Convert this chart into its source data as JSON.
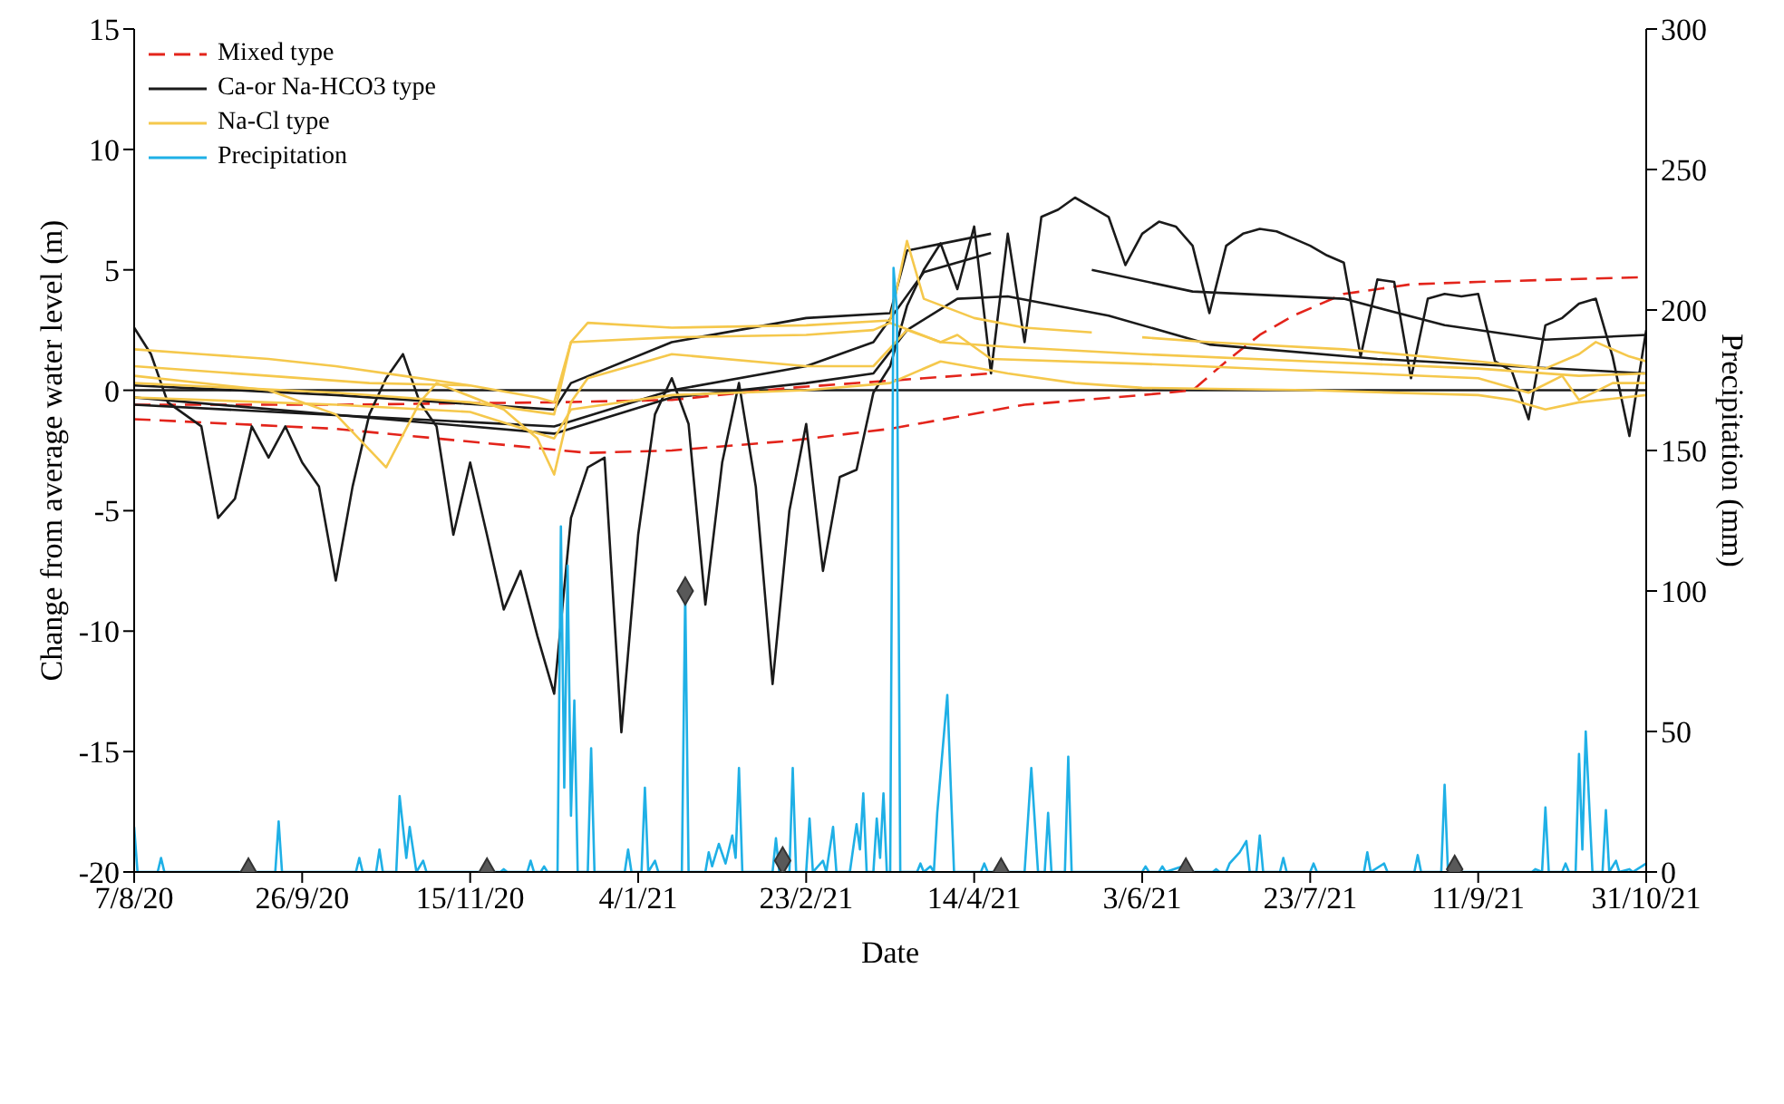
{
  "chart_data": {
    "type": "line",
    "xlabel": "Date",
    "ylabel": "Change from average water level (m)",
    "y2label": "Precipitation (mm)",
    "xlim": [
      "2020-08-07",
      "2021-10-31"
    ],
    "xticks": [
      {
        "value": "2020-08-07",
        "label": "7/8/20"
      },
      {
        "value": "2020-09-26",
        "label": "26/9/20"
      },
      {
        "value": "2020-11-15",
        "label": "15/11/20"
      },
      {
        "value": "2021-01-04",
        "label": "4/1/21"
      },
      {
        "value": "2021-02-23",
        "label": "23/2/21"
      },
      {
        "value": "2021-04-14",
        "label": "14/4/21"
      },
      {
        "value": "2021-06-03",
        "label": "3/6/21"
      },
      {
        "value": "2021-07-23",
        "label": "23/7/21"
      },
      {
        "value": "2021-09-11",
        "label": "11/9/21"
      },
      {
        "value": "2021-10-31",
        "label": "31/10/21"
      }
    ],
    "ylim": [
      -20,
      15
    ],
    "yticks": [
      -20,
      -15,
      -10,
      -5,
      0,
      5,
      10,
      15
    ],
    "y2lim": [
      0,
      300
    ],
    "y2ticks": [
      0,
      50,
      100,
      150,
      200,
      250,
      300
    ],
    "grid": false,
    "legend": "top left",
    "marker": "none",
    "line_style": "solid",
    "ref_lines": [
      {
        "axis": "y",
        "value": 0,
        "color": "#1a1a1a"
      }
    ],
    "x": [
      "2020-08-07",
      "2020-08-12",
      "2020-08-17",
      "2020-08-22",
      "2020-08-27",
      "2020-09-01",
      "2020-09-06",
      "2020-09-11",
      "2020-09-16",
      "2020-09-21",
      "2020-09-26",
      "2020-10-01",
      "2020-10-06",
      "2020-10-11",
      "2020-10-16",
      "2020-10-21",
      "2020-10-26",
      "2020-10-31",
      "2020-11-05",
      "2020-11-10",
      "2020-11-15",
      "2020-11-20",
      "2020-11-25",
      "2020-11-30",
      "2020-12-05",
      "2020-12-10",
      "2020-12-15",
      "2020-12-20",
      "2020-12-25",
      "2020-12-30",
      "2021-01-04",
      "2021-01-09",
      "2021-01-14",
      "2021-01-19",
      "2021-01-24",
      "2021-01-29",
      "2021-02-03",
      "2021-02-08",
      "2021-02-13",
      "2021-02-18",
      "2021-02-23",
      "2021-02-28",
      "2021-03-05",
      "2021-03-10",
      "2021-03-15",
      "2021-03-20",
      "2021-03-25",
      "2021-03-30",
      "2021-04-04",
      "2021-04-09",
      "2021-04-14",
      "2021-04-19",
      "2021-04-24",
      "2021-04-29",
      "2021-05-04",
      "2021-05-09",
      "2021-05-14",
      "2021-05-19",
      "2021-05-24",
      "2021-05-29",
      "2021-06-03",
      "2021-06-08",
      "2021-06-13",
      "2021-06-18",
      "2021-06-23",
      "2021-06-28",
      "2021-07-03",
      "2021-07-08",
      "2021-07-13",
      "2021-07-18",
      "2021-07-23",
      "2021-07-28",
      "2021-08-02",
      "2021-08-07",
      "2021-08-12",
      "2021-08-17",
      "2021-08-22",
      "2021-08-27",
      "2021-09-01",
      "2021-09-06",
      "2021-09-11",
      "2021-09-16",
      "2021-09-21",
      "2021-09-26",
      "2021-10-01",
      "2021-10-06",
      "2021-10-11",
      "2021-10-16",
      "2021-10-21",
      "2021-10-26",
      "2021-10-31"
    ],
    "series": [
      {
        "type": "line",
        "name": "Mixed type",
        "color": "#e3241b",
        "line_style": "dashed",
        "x": [
          "2020-08-07",
          "2020-10-06",
          "2020-12-05",
          "2020-12-20",
          "2021-01-14",
          "2021-02-18",
          "2021-03-20",
          "2021-04-29",
          "2021-06-03",
          "2021-06-18",
          "2021-06-28",
          "2021-07-08",
          "2021-07-18",
          "2021-08-02",
          "2021-08-22",
          "2021-09-11",
          "2021-10-31"
        ],
        "values": [
          -1.2,
          -1.6,
          -2.4,
          -2.6,
          -2.5,
          -2.1,
          -1.6,
          -0.6,
          -0.2,
          0.0,
          1.2,
          2.3,
          3.1,
          4.0,
          4.4,
          4.5,
          4.7
        ]
      },
      {
        "type": "line",
        "color": "#e3241b",
        "line_style": "dashed",
        "x": [
          "2020-08-07",
          "2020-10-06",
          "2020-12-10",
          "2021-01-14",
          "2021-02-18",
          "2021-03-20",
          "2021-04-19"
        ],
        "values": [
          -0.6,
          -0.6,
          -0.5,
          -0.4,
          0.1,
          0.4,
          0.7
        ]
      },
      {
        "type": "line",
        "name": "Ca-or Na-HCO3 type",
        "color": "#1a1a1a",
        "values": [
          2.6,
          1.5,
          -0.5,
          -1.0,
          -1.5,
          -5.3,
          -4.5,
          -1.5,
          -2.8,
          -1.5,
          -3.0,
          -4.0,
          -7.9,
          -4.0,
          -1.0,
          0.5,
          1.5,
          -0.5,
          -1.5,
          -6.0,
          -3.0,
          -6.0,
          -9.1,
          -7.5,
          -10.2,
          -12.6,
          -5.3,
          -3.2,
          -2.8,
          -14.2,
          -6.0,
          -1.0,
          0.5,
          -1.4,
          -8.9,
          -3.0,
          0.3,
          -4.0,
          -12.2,
          -5.0,
          -1.4,
          -7.5,
          -3.6,
          -3.3,
          -0.1,
          1.0,
          3.5,
          5.0,
          6.1,
          4.2,
          6.8,
          0.7,
          6.5,
          2.0,
          7.2,
          7.5,
          8.0,
          7.6,
          7.2,
          5.2,
          6.5,
          7.0,
          6.8,
          6.0,
          3.2,
          6.0,
          6.5,
          6.7,
          6.6,
          6.3,
          6.0,
          5.6,
          5.3,
          1.4,
          4.6,
          4.5,
          0.5,
          3.8,
          4.0,
          3.9,
          4.0,
          1.2,
          0.8,
          -1.2,
          2.7,
          3.0,
          3.6,
          3.8,
          1.4,
          -1.9,
          2.5
        ]
      },
      {
        "type": "line",
        "color": "#1a1a1a",
        "x": [
          "2020-08-07",
          "2020-10-06",
          "2020-12-10",
          "2020-12-15",
          "2021-01-14",
          "2021-02-23",
          "2021-03-20",
          "2021-03-25",
          "2021-04-19"
        ],
        "values": [
          0.2,
          -0.2,
          -0.8,
          0.3,
          2.0,
          3.0,
          3.2,
          5.8,
          6.5
        ]
      },
      {
        "type": "line",
        "color": "#1a1a1a",
        "x": [
          "2021-05-19",
          "2021-06-18",
          "2021-08-02",
          "2021-09-01",
          "2021-10-01",
          "2021-10-31"
        ],
        "values": [
          5.0,
          4.1,
          3.8,
          2.7,
          2.1,
          2.3
        ]
      },
      {
        "type": "line",
        "color": "#1a1a1a",
        "x": [
          "2020-08-07",
          "2020-12-10",
          "2021-01-14",
          "2021-02-23",
          "2021-03-15",
          "2021-03-25",
          "2021-04-09",
          "2021-04-24",
          "2021-05-24",
          "2021-06-23",
          "2021-08-12",
          "2021-09-21",
          "2021-10-31"
        ],
        "values": [
          -0.3,
          -1.8,
          -0.3,
          0.3,
          0.7,
          2.5,
          3.8,
          3.9,
          3.1,
          1.9,
          1.3,
          1.0,
          0.7
        ]
      },
      {
        "type": "line",
        "color": "#1a1a1a",
        "x": [
          "2020-08-07",
          "2020-12-10",
          "2021-01-14",
          "2021-02-23",
          "2021-03-15",
          "2021-03-30",
          "2021-04-19"
        ],
        "values": [
          -0.6,
          -1.5,
          0.0,
          1.0,
          2.0,
          4.9,
          5.7
        ]
      },
      {
        "type": "line",
        "name": "Na-Cl type",
        "color": "#f5c84c",
        "x": [
          "2020-08-07",
          "2020-08-27",
          "2020-09-16",
          "2020-10-06",
          "2020-10-26",
          "2020-11-15",
          "2020-12-05",
          "2020-12-10",
          "2020-12-15",
          "2020-12-20",
          "2021-01-14",
          "2021-02-23",
          "2021-03-20",
          "2021-03-25",
          "2021-03-30",
          "2021-04-14",
          "2021-04-29",
          "2021-05-19"
        ],
        "values": [
          1.7,
          1.5,
          1.3,
          1.0,
          0.6,
          0.2,
          -0.3,
          -0.5,
          2.0,
          2.8,
          2.6,
          2.7,
          2.9,
          6.2,
          3.8,
          3.0,
          2.6,
          2.4
        ]
      },
      {
        "type": "line",
        "color": "#f5c84c",
        "x": [
          "2021-06-03",
          "2021-06-23",
          "2021-08-02",
          "2021-09-11",
          "2021-10-01",
          "2021-10-11",
          "2021-10-16",
          "2021-10-26",
          "2021-10-31"
        ],
        "values": [
          2.2,
          2.0,
          1.7,
          1.2,
          0.9,
          1.5,
          2.0,
          1.4,
          1.2
        ]
      },
      {
        "type": "line",
        "color": "#f5c84c",
        "x": [
          "2020-08-07",
          "2020-09-16",
          "2020-10-06",
          "2020-10-21",
          "2020-10-31",
          "2020-11-05",
          "2020-11-25",
          "2020-12-05",
          "2020-12-10",
          "2020-12-15",
          "2020-12-20",
          "2021-01-14",
          "2021-02-23",
          "2021-03-15",
          "2021-03-25",
          "2021-04-04",
          "2021-04-09",
          "2021-04-19",
          "2021-06-03",
          "2021-07-23",
          "2021-09-11",
          "2021-09-26",
          "2021-10-06",
          "2021-10-11",
          "2021-10-21",
          "2021-10-31"
        ],
        "values": [
          0.6,
          0.0,
          -1.0,
          -3.2,
          -0.5,
          0.3,
          -0.8,
          -2.0,
          -3.5,
          -0.5,
          0.5,
          1.5,
          1.0,
          1.0,
          2.5,
          2.0,
          2.3,
          1.3,
          1.1,
          0.8,
          0.5,
          -0.1,
          0.6,
          -0.4,
          0.3,
          0.3
        ]
      },
      {
        "type": "line",
        "color": "#f5c84c",
        "x": [
          "2020-08-07",
          "2020-10-06",
          "2020-11-15",
          "2020-12-10",
          "2020-12-15",
          "2021-01-14",
          "2021-02-23",
          "2021-03-15",
          "2021-03-20",
          "2021-04-04",
          "2021-04-24",
          "2021-06-03",
          "2021-07-23",
          "2021-09-11",
          "2021-10-11",
          "2021-10-31"
        ],
        "values": [
          0.3,
          -0.1,
          -0.5,
          -1.0,
          2.0,
          2.2,
          2.3,
          2.5,
          2.8,
          2.0,
          1.8,
          1.5,
          1.2,
          0.9,
          0.6,
          0.7
        ]
      },
      {
        "type": "line",
        "color": "#f5c84c",
        "x": [
          "2020-08-07",
          "2020-10-06",
          "2020-11-15",
          "2020-12-10",
          "2020-12-15",
          "2021-01-14",
          "2021-02-23",
          "2021-03-20",
          "2021-04-04",
          "2021-04-24",
          "2021-05-14",
          "2021-06-03",
          "2021-07-23",
          "2021-09-11",
          "2021-09-21",
          "2021-10-01",
          "2021-10-11",
          "2021-10-31"
        ],
        "values": [
          -0.3,
          -0.6,
          -0.9,
          -2.0,
          -0.8,
          -0.2,
          0.0,
          0.3,
          1.2,
          0.7,
          0.3,
          0.1,
          0.0,
          -0.2,
          -0.4,
          -0.8,
          -0.5,
          -0.2
        ]
      },
      {
        "type": "line",
        "color": "#f5c84c",
        "x": [
          "2020-08-07",
          "2020-09-16",
          "2020-10-16",
          "2020-11-15"
        ],
        "values": [
          1.0,
          0.6,
          0.3,
          0.2
        ]
      },
      {
        "type": "line",
        "name": "Precipitation",
        "color": "#1fb0e6",
        "axis": "y2",
        "x": [
          "2020-08-07",
          "2020-08-08",
          "2020-08-14",
          "2020-08-15",
          "2020-08-16",
          "2020-09-18",
          "2020-09-19",
          "2020-09-20",
          "2020-10-12",
          "2020-10-13",
          "2020-10-14",
          "2020-10-18",
          "2020-10-19",
          "2020-10-20",
          "2020-10-24",
          "2020-10-25",
          "2020-10-27",
          "2020-10-28",
          "2020-10-30",
          "2020-11-01",
          "2020-11-02",
          "2020-11-24",
          "2020-11-25",
          "2020-11-26",
          "2020-12-02",
          "2020-12-03",
          "2020-12-04",
          "2020-12-06",
          "2020-12-07",
          "2020-12-08",
          "2020-12-11",
          "2020-12-12",
          "2020-12-13",
          "2020-12-14",
          "2020-12-15",
          "2020-12-16",
          "2020-12-17",
          "2020-12-20",
          "2020-12-21",
          "2020-12-22",
          "2020-12-31",
          "2021-01-01",
          "2021-01-02",
          "2021-01-05",
          "2021-01-06",
          "2021-01-07",
          "2021-01-09",
          "2021-01-10",
          "2021-01-17",
          "2021-01-18",
          "2021-01-19",
          "2021-01-24",
          "2021-01-25",
          "2021-01-26",
          "2021-01-28",
          "2021-01-30",
          "2021-02-01",
          "2021-02-02",
          "2021-02-03",
          "2021-02-04",
          "2021-02-13",
          "2021-02-14",
          "2021-02-15",
          "2021-02-18",
          "2021-02-19",
          "2021-02-20",
          "2021-02-23",
          "2021-02-24",
          "2021-02-25",
          "2021-02-28",
          "2021-03-01",
          "2021-03-03",
          "2021-03-04",
          "2021-03-08",
          "2021-03-10",
          "2021-03-11",
          "2021-03-12",
          "2021-03-13",
          "2021-03-15",
          "2021-03-16",
          "2021-03-17",
          "2021-03-18",
          "2021-03-19",
          "2021-03-20",
          "2021-03-21",
          "2021-03-22",
          "2021-03-23",
          "2021-03-28",
          "2021-03-29",
          "2021-03-30",
          "2021-04-01",
          "2021-04-02",
          "2021-04-03",
          "2021-04-06",
          "2021-04-08",
          "2021-04-16",
          "2021-04-17",
          "2021-04-18",
          "2021-04-29",
          "2021-05-01",
          "2021-05-03",
          "2021-05-05",
          "2021-05-06",
          "2021-05-07",
          "2021-05-11",
          "2021-05-12",
          "2021-05-13",
          "2021-06-03",
          "2021-06-04",
          "2021-06-05",
          "2021-06-08",
          "2021-06-09",
          "2021-06-10",
          "2021-06-15",
          "2021-06-16",
          "2021-06-24",
          "2021-06-25",
          "2021-06-26",
          "2021-06-28",
          "2021-06-29",
          "2021-07-02",
          "2021-07-04",
          "2021-07-05",
          "2021-07-07",
          "2021-07-08",
          "2021-07-09",
          "2021-07-14",
          "2021-07-15",
          "2021-07-16",
          "2021-07-23",
          "2021-07-24",
          "2021-07-25",
          "2021-08-08",
          "2021-08-09",
          "2021-08-10",
          "2021-08-14",
          "2021-08-15",
          "2021-08-23",
          "2021-08-24",
          "2021-08-25",
          "2021-08-31",
          "2021-09-01",
          "2021-09-02",
          "2021-09-27",
          "2021-09-28",
          "2021-09-30",
          "2021-10-01",
          "2021-10-02",
          "2021-10-06",
          "2021-10-07",
          "2021-10-08",
          "2021-10-10",
          "2021-10-11",
          "2021-10-12",
          "2021-10-13",
          "2021-10-15",
          "2021-10-18",
          "2021-10-19",
          "2021-10-20",
          "2021-10-22",
          "2021-10-23",
          "2021-10-26",
          "2021-10-27",
          "2021-10-31"
        ],
        "values": [
          16,
          0,
          0,
          5,
          0,
          0,
          18,
          0,
          0,
          5,
          0,
          0,
          8,
          0,
          0,
          27,
          5,
          16,
          0,
          4,
          0,
          0,
          1,
          0,
          0,
          4,
          0,
          0,
          2,
          0,
          0,
          123,
          30,
          109,
          20,
          61,
          0,
          0,
          44,
          0,
          0,
          8,
          0,
          0,
          30,
          0,
          4,
          0,
          0,
          100,
          0,
          0,
          7,
          2,
          10,
          3,
          13,
          5,
          37,
          0,
          0,
          12,
          0,
          0,
          37,
          0,
          0,
          19,
          0,
          4,
          0,
          16,
          0,
          0,
          17,
          8,
          28,
          0,
          0,
          19,
          5,
          28,
          0,
          0,
          215,
          200,
          0,
          0,
          3,
          0,
          2,
          0,
          21,
          63,
          0,
          0,
          3,
          0,
          0,
          37,
          0,
          0,
          21,
          0,
          0,
          41,
          0,
          0,
          2,
          0,
          0,
          2,
          0,
          2,
          0,
          0,
          1,
          0,
          0,
          3,
          7,
          11,
          0,
          0,
          13,
          0,
          0,
          5,
          0,
          0,
          3,
          0,
          0,
          7,
          0,
          3,
          0,
          0,
          6,
          0,
          0,
          31,
          0,
          0,
          1,
          0,
          23,
          0,
          0,
          3,
          0,
          0,
          42,
          8,
          50,
          0,
          0,
          22,
          0,
          4,
          0,
          1,
          0,
          3
        ]
      },
      {
        "type": "scatter",
        "color": "#595959",
        "marker": "diamond",
        "axis": "y2",
        "x": [
          "2020-09-10",
          "2020-11-20",
          "2021-01-18",
          "2021-02-16",
          "2021-04-22",
          "2021-06-16",
          "2021-09-04"
        ],
        "values": [
          0,
          0,
          100,
          4,
          0,
          0,
          1
        ]
      }
    ]
  }
}
